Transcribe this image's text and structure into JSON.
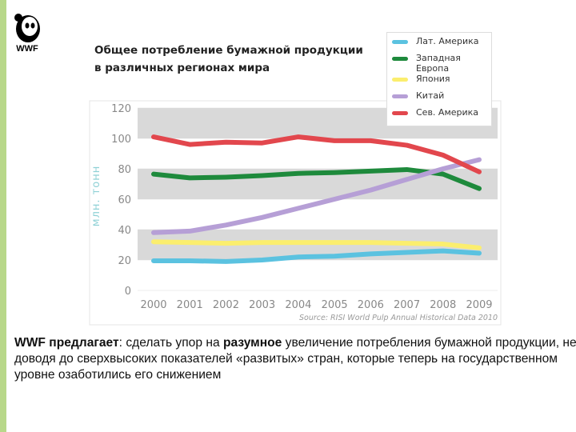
{
  "logo": {
    "text": "WWF"
  },
  "chart_data": {
    "type": "line",
    "title": [
      "Общее потребление бумажной продукции",
      "в различных регионах мира"
    ],
    "y_label": "млн. тонн",
    "source": "Source: RISI World Pulp Annual Historical Data 2010",
    "categories": [
      "2000",
      "2001",
      "2002",
      "2003",
      "2004",
      "2005",
      "2006",
      "2007",
      "2008",
      "2009"
    ],
    "ylim": [
      0,
      120
    ],
    "yticks": [
      0,
      20,
      40,
      60,
      80,
      100,
      120
    ],
    "bands": true,
    "series": [
      {
        "name": "Лат. Америка",
        "color": "#5bc2e0",
        "values": [
          19.5,
          19.5,
          19,
          20,
          22,
          22.5,
          24,
          25,
          26,
          24.5
        ]
      },
      {
        "name": "Западная Европа",
        "color": "#1e8a3c",
        "values": [
          76.5,
          74,
          74.5,
          75.5,
          77,
          77.5,
          78.5,
          79.5,
          76.5,
          67
        ]
      },
      {
        "name": "Япония",
        "color": "#fbee6e",
        "values": [
          32,
          31.5,
          31,
          31.5,
          31.5,
          31.5,
          31.5,
          31,
          30.5,
          28
        ]
      },
      {
        "name": "Китай",
        "color": "#b69fd6",
        "values": [
          38,
          39,
          43,
          48,
          54,
          60,
          66,
          73,
          80,
          86
        ]
      },
      {
        "name": "Сев. Америка",
        "color": "#e2474d",
        "values": [
          101,
          96,
          97.5,
          97,
          101,
          98.5,
          98.5,
          95.5,
          89,
          78
        ]
      }
    ]
  },
  "footer_text": [
    {
      "text": "WWF предлагает",
      "bold": true
    },
    {
      "text": ": сделать упор на ",
      "bold": false
    },
    {
      "text": "разумное",
      "bold": true
    },
    {
      "text": " увеличение потребления бумажной продукции, не доводя до сверхвысоких показателей «развитых» стран, которые теперь на государственном уровне озаботились его снижением",
      "bold": false
    }
  ]
}
